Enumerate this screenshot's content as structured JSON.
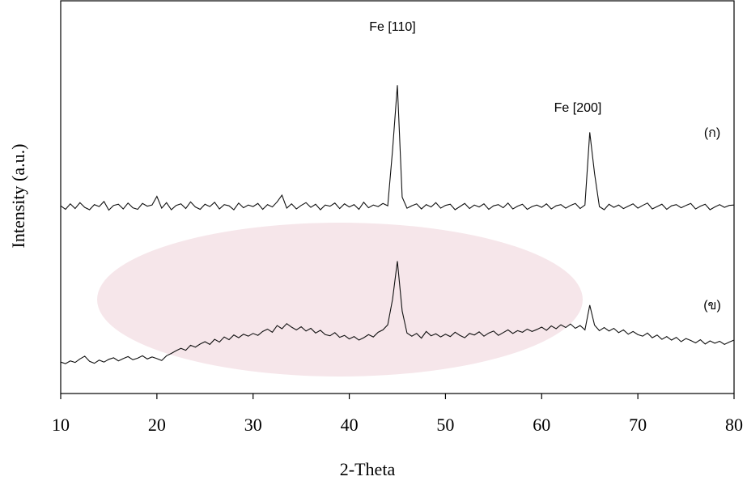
{
  "chart_data": {
    "type": "line",
    "xlabel": "2-Theta",
    "ylabel": "Intensity (a.u.)",
    "annotations": [
      "Fe [110]",
      "Fe [200]",
      "(ก)",
      "(ข)"
    ],
    "xlim": [
      10,
      80
    ],
    "xticks": [
      10,
      20,
      30,
      40,
      50,
      60,
      70,
      80
    ],
    "ylim": [
      0,
      100
    ],
    "x": [
      10,
      10.5,
      11,
      11.5,
      12,
      12.5,
      13,
      13.5,
      14,
      14.5,
      15,
      15.5,
      16,
      16.5,
      17,
      17.5,
      18,
      18.5,
      19,
      19.5,
      20,
      20.5,
      21,
      21.5,
      22,
      22.5,
      23,
      23.5,
      24,
      24.5,
      25,
      25.5,
      26,
      26.5,
      27,
      27.5,
      28,
      28.5,
      29,
      29.5,
      30,
      30.5,
      31,
      31.5,
      32,
      32.5,
      33,
      33.5,
      34,
      34.5,
      35,
      35.5,
      36,
      36.5,
      37,
      37.5,
      38,
      38.5,
      39,
      39.5,
      40,
      40.5,
      41,
      41.5,
      42,
      42.5,
      43,
      43.5,
      44,
      44.5,
      45,
      45.5,
      46,
      46.5,
      47,
      47.5,
      48,
      48.5,
      49,
      49.5,
      50,
      50.5,
      51,
      51.5,
      52,
      52.5,
      53,
      53.5,
      54,
      54.5,
      55,
      55.5,
      56,
      56.5,
      57,
      57.5,
      58,
      58.5,
      59,
      59.5,
      60,
      60.5,
      61,
      61.5,
      62,
      62.5,
      63,
      63.5,
      64,
      64.5,
      65,
      65.5,
      66,
      66.5,
      67,
      67.5,
      68,
      68.5,
      69,
      69.5,
      70,
      70.5,
      71,
      71.5,
      72,
      72.5,
      73,
      73.5,
      74,
      74.5,
      75,
      75.5,
      76,
      76.5,
      77,
      77.5,
      78,
      78.5,
      79,
      79.5,
      80
    ],
    "series": [
      {
        "name": "(ก)",
        "color": "#111111",
        "values": [
          47.8,
          46.9,
          48.3,
          47.1,
          48.6,
          47.4,
          46.8,
          48.1,
          47.6,
          48.9,
          46.7,
          47.9,
          48.2,
          47.0,
          48.5,
          47.3,
          46.9,
          48.4,
          47.7,
          48.0,
          50.2,
          47.2,
          48.6,
          46.8,
          47.9,
          48.3,
          47.1,
          48.8,
          47.5,
          46.9,
          48.2,
          47.6,
          48.7,
          47.0,
          48.1,
          47.8,
          46.8,
          48.5,
          47.3,
          48.0,
          47.6,
          48.4,
          46.9,
          48.1,
          47.5,
          48.8,
          50.5,
          47.2,
          48.3,
          47.0,
          47.9,
          48.6,
          47.4,
          48.2,
          46.8,
          48.0,
          47.7,
          48.5,
          47.1,
          48.3,
          47.5,
          48.1,
          46.9,
          48.7,
          47.3,
          48.0,
          47.6,
          48.4,
          47.8,
          62.0,
          78.5,
          50.0,
          47.2,
          47.8,
          48.3,
          47.0,
          48.1,
          47.5,
          48.6,
          47.2,
          47.9,
          48.2,
          46.8,
          47.6,
          48.4,
          47.1,
          48.0,
          47.5,
          48.3,
          46.9,
          47.8,
          48.1,
          47.3,
          48.5,
          47.0,
          47.7,
          48.2,
          46.9,
          47.6,
          48.0,
          47.4,
          48.3,
          47.0,
          47.8,
          48.1,
          47.2,
          47.9,
          48.4,
          47.1,
          48.0,
          66.5,
          56.0,
          47.6,
          46.8,
          48.2,
          47.4,
          48.0,
          47.1,
          47.7,
          48.3,
          47.2,
          47.9,
          48.5,
          47.0,
          47.6,
          48.2,
          46.9,
          47.8,
          48.1,
          47.3,
          47.9,
          48.4,
          47.0,
          47.7,
          48.2,
          46.8,
          47.5,
          48.1,
          47.4,
          47.9,
          48.0
        ]
      },
      {
        "name": "(ข)",
        "color": "#111111",
        "values": [
          8.0,
          7.6,
          8.3,
          7.9,
          8.8,
          9.5,
          8.2,
          7.7,
          8.5,
          8.0,
          8.7,
          9.1,
          8.3,
          8.9,
          9.4,
          8.6,
          9.0,
          9.6,
          8.8,
          9.3,
          8.9,
          8.4,
          9.6,
          10.2,
          10.9,
          11.5,
          11.0,
          12.3,
          11.8,
          12.6,
          13.2,
          12.5,
          13.8,
          13.1,
          14.4,
          13.7,
          14.9,
          14.2,
          15.1,
          14.6,
          15.3,
          14.8,
          15.8,
          16.4,
          15.6,
          17.3,
          16.5,
          17.8,
          16.9,
          16.2,
          17.0,
          15.9,
          16.6,
          15.4,
          16.1,
          15.0,
          14.7,
          15.5,
          14.3,
          14.8,
          13.9,
          14.5,
          13.6,
          14.2,
          15.0,
          14.4,
          15.6,
          16.2,
          17.5,
          24.0,
          33.7,
          21.0,
          15.4,
          14.6,
          15.3,
          14.1,
          15.8,
          14.7,
          15.2,
          14.4,
          15.1,
          14.5,
          15.6,
          14.8,
          14.2,
          15.3,
          14.9,
          15.7,
          14.6,
          15.4,
          15.9,
          14.8,
          15.5,
          16.2,
          15.3,
          16.0,
          15.6,
          16.4,
          15.8,
          16.3,
          16.9,
          16.1,
          17.2,
          16.5,
          17.5,
          16.8,
          17.7,
          16.6,
          17.3,
          16.2,
          22.5,
          17.4,
          16.0,
          16.8,
          15.9,
          16.6,
          15.5,
          16.2,
          15.1,
          15.8,
          15.0,
          14.6,
          15.4,
          14.2,
          14.9,
          13.8,
          14.5,
          13.6,
          14.3,
          13.2,
          14.0,
          13.5,
          12.9,
          13.7,
          12.6,
          13.4,
          12.8,
          13.3,
          12.5,
          13.1,
          13.6
        ]
      }
    ]
  }
}
